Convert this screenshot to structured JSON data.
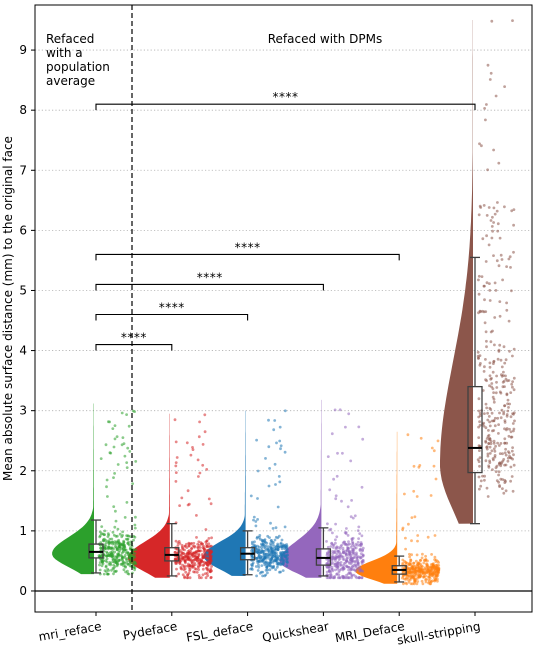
{
  "chart_data": {
    "type": "raincloud",
    "ylabel": "Mean absolute surface distance (mm) to the original face",
    "ylim": [
      -0.35,
      9.75
    ],
    "yticks": [
      0,
      1,
      2,
      3,
      4,
      5,
      6,
      7,
      8,
      9
    ],
    "grid": "horizontal dotted",
    "regions": [
      {
        "label_lines": [
          "Refaced",
          "with a",
          "population",
          "average"
        ]
      },
      {
        "label": "Refaced with DPMs"
      }
    ],
    "categories": [
      "mri_reface",
      "Pydeface",
      "FSL_deface",
      "Quickshear",
      "MRI_Deface",
      "skull-stripping"
    ],
    "colors": [
      "#2ca02c",
      "#d62728",
      "#1f77b4",
      "#9467bd",
      "#ff7f0e",
      "#8c564b"
    ],
    "series": [
      {
        "category": "mri_reface",
        "median": 0.65,
        "q1": 0.55,
        "q3": 0.78,
        "whisker_low": 0.3,
        "whisker_high": 1.18,
        "min": 0.28,
        "max": 3.12,
        "mode": 0.62
      },
      {
        "category": "Pydeface",
        "median": 0.6,
        "q1": 0.5,
        "q3": 0.72,
        "whisker_low": 0.25,
        "whisker_high": 1.12,
        "min": 0.22,
        "max": 2.95,
        "mode": 0.55
      },
      {
        "category": "FSL_deface",
        "median": 0.62,
        "q1": 0.52,
        "q3": 0.72,
        "whisker_low": 0.27,
        "whisker_high": 1.0,
        "min": 0.25,
        "max": 3.0,
        "mode": 0.58
      },
      {
        "category": "Quickshear",
        "median": 0.55,
        "q1": 0.43,
        "q3": 0.7,
        "whisker_low": 0.25,
        "whisker_high": 1.05,
        "min": 0.22,
        "max": 3.18,
        "mode": 0.5
      },
      {
        "category": "MRI_Deface",
        "median": 0.35,
        "q1": 0.28,
        "q3": 0.42,
        "whisker_low": 0.15,
        "whisker_high": 0.58,
        "min": 0.12,
        "max": 2.65,
        "mode": 0.33
      },
      {
        "category": "skull-stripping",
        "median": 2.38,
        "q1": 1.97,
        "q3": 3.4,
        "whisker_low": 1.12,
        "whisker_high": 5.55,
        "min": 1.12,
        "max": 9.5,
        "mode": 2.1
      }
    ],
    "significance": [
      {
        "from": "mri_reface",
        "to": "Pydeface",
        "y": 4.1,
        "label": "****"
      },
      {
        "from": "mri_reface",
        "to": "FSL_deface",
        "y": 4.6,
        "label": "****"
      },
      {
        "from": "mri_reface",
        "to": "Quickshear",
        "y": 5.1,
        "label": "****"
      },
      {
        "from": "mri_reface",
        "to": "MRI_Deface",
        "y": 5.6,
        "label": "****"
      },
      {
        "from": "mri_reface",
        "to": "skull-stripping",
        "y": 8.1,
        "label": "****"
      }
    ]
  }
}
